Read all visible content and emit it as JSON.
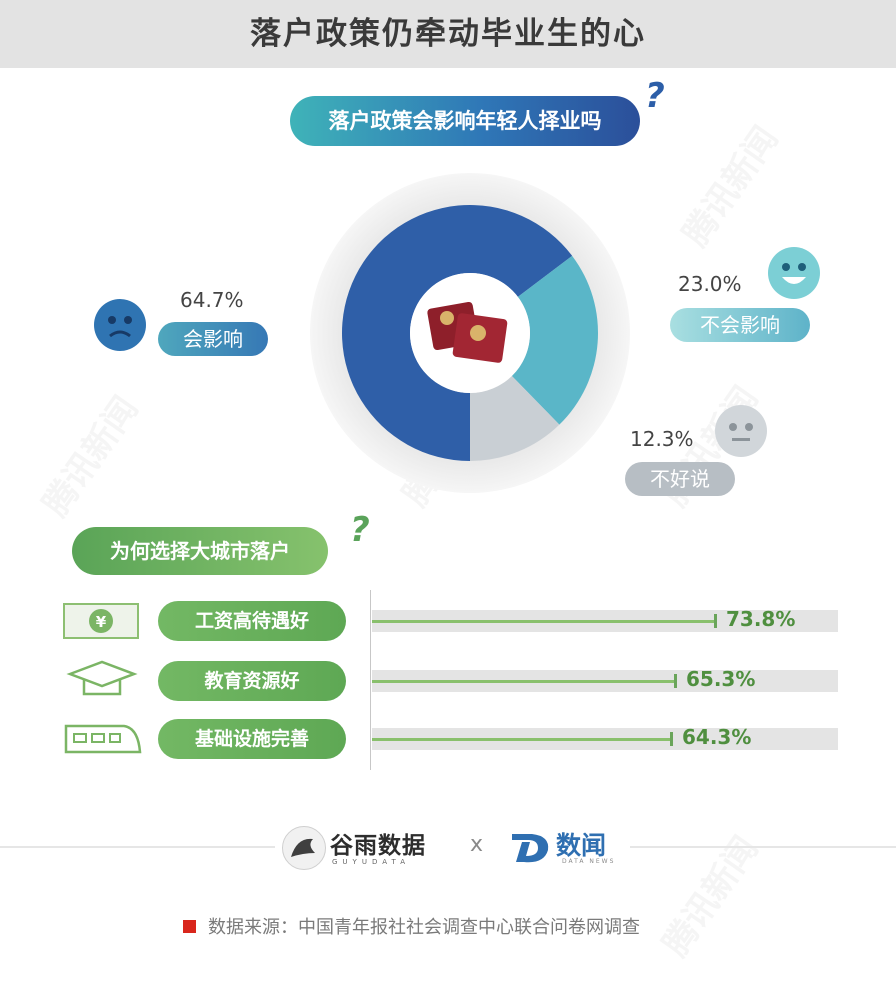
{
  "title": "落户政策仍牵动毕业生的心",
  "question1": "落户政策会影响年轻人择业吗",
  "question2": "为何选择大城市落户",
  "question_mark": "?",
  "chart_data": [
    {
      "type": "pie",
      "title": "落户政策会影响年轻人择业吗",
      "categories": [
        "会影响",
        "不会影响",
        "不好说"
      ],
      "values": [
        64.7,
        23.0,
        12.3
      ],
      "labels": [
        "64.7%",
        "23.0%",
        "12.3%"
      ],
      "colors": [
        "#2f5fa8",
        "#5ab6c8",
        "#c9cfd4"
      ],
      "face_icons": [
        "sad-face-icon",
        "happy-face-icon",
        "neutral-face-icon"
      ]
    },
    {
      "type": "bar",
      "title": "为何选择大城市落户",
      "categories": [
        "工资高待遇好",
        "教育资源好",
        "基础设施完善"
      ],
      "values": [
        73.8,
        65.3,
        64.3
      ],
      "labels": [
        "73.8%",
        "65.3%",
        "64.3%"
      ],
      "icons": [
        "money-icon",
        "graduation-cap-icon",
        "train-icon"
      ],
      "xlim": [
        0,
        100
      ],
      "color": "#89c06c"
    }
  ],
  "footer": {
    "logo1": "谷雨数据",
    "logo1_sub": "GUYUDATA",
    "times": "x",
    "logo2": "数闻",
    "logo2_sub": "DATA NEWS",
    "source": "数据来源：中国青年报社社会调查中心联合问卷网调查"
  },
  "watermark": "腾讯新闻"
}
